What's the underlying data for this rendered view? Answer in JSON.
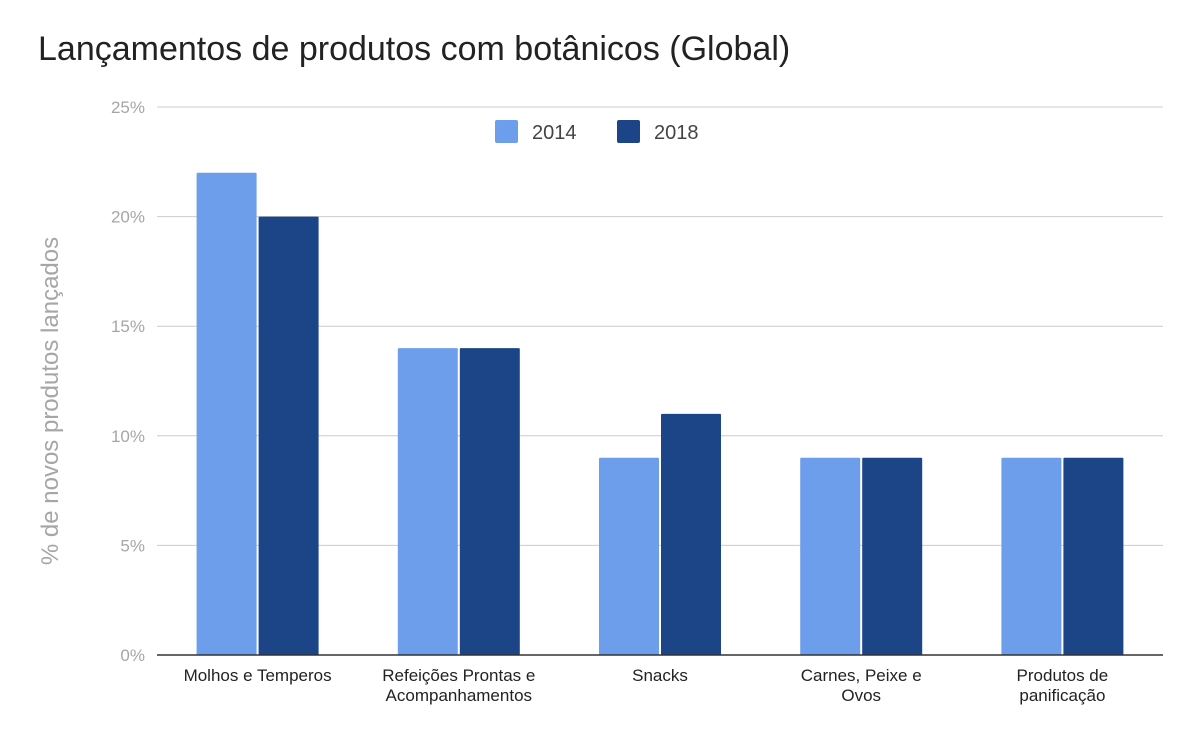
{
  "chart_data": {
    "type": "bar",
    "title": "Lançamentos de produtos com botânicos (Global)",
    "xlabel": "",
    "ylabel": "% de novos produtos lançados",
    "categories": [
      [
        "Molhos e Temperos"
      ],
      [
        "Refeições Prontas e",
        "Acompanhamentos"
      ],
      [
        "Snacks"
      ],
      [
        "Carnes, Peixe e",
        "Ovos"
      ],
      [
        "Produtos de",
        "panificação"
      ]
    ],
    "series": [
      {
        "name": "2014",
        "color": "#6d9eeb",
        "values": [
          22,
          14,
          9,
          9,
          9
        ]
      },
      {
        "name": "2018",
        "color": "#1c4587",
        "values": [
          20,
          14,
          11,
          9,
          9
        ]
      }
    ],
    "ylim": [
      0,
      25
    ],
    "yticks": [
      0,
      5,
      10,
      15,
      20,
      25
    ],
    "ytick_labels": [
      "0%",
      "5%",
      "10%",
      "15%",
      "20%",
      "25%"
    ],
    "grid": true,
    "legend_position": "top-center"
  }
}
